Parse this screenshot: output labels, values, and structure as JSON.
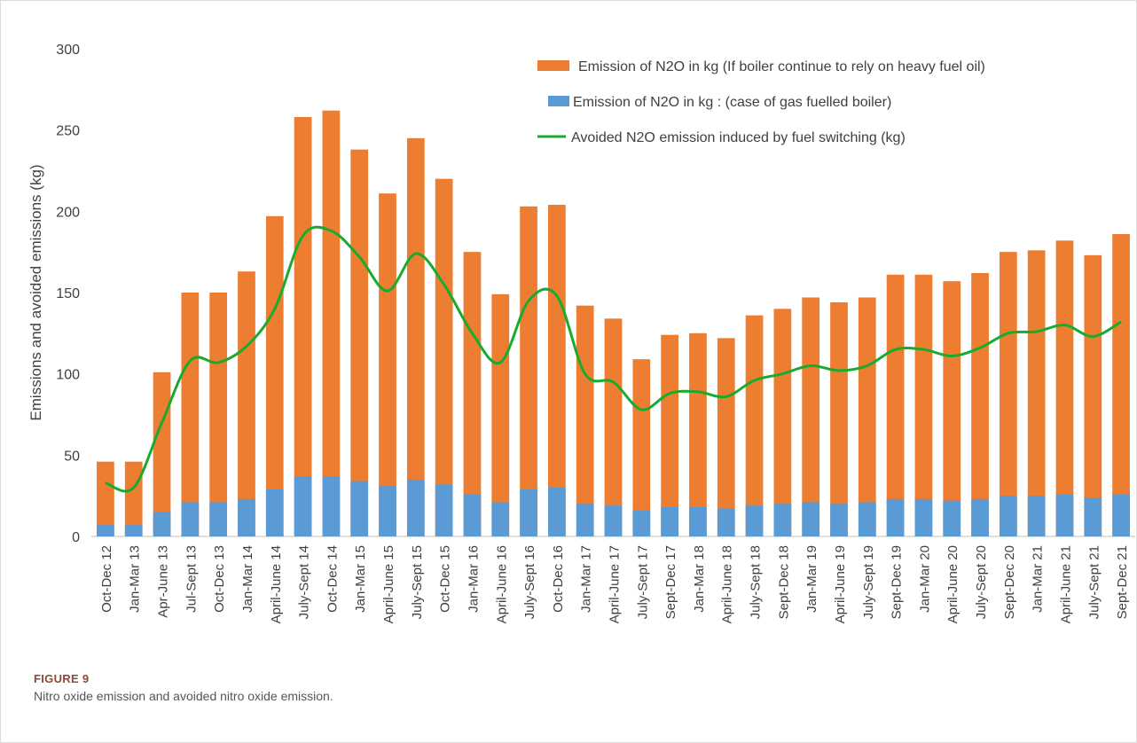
{
  "chart_data": {
    "type": "bar",
    "y_label": "Emissions and avoided emissions (kg)",
    "categories": [
      "Oct-Dec 12",
      "Jan-Mar 13",
      "Apr-June 13",
      "Jul-Sept 13",
      "Oct-Dec 13",
      "Jan-Mar 14",
      "April-June 14",
      "July-Sept 14",
      "Oct-Dec 14",
      "Jan-Mar 15",
      "April-June 15",
      "July-Sept 15",
      "Oct-Dec 15",
      "Jan-Mar 16",
      "April-June 16",
      "July-Sept 16",
      "Oct-Dec 16",
      "Jan-Mar 17",
      "April-June 17",
      "July-Sept 17",
      "Sept-Dec 17",
      "Jan-Mar 18",
      "April-June 18",
      "July-Sept 18",
      "Sept-Dec 18",
      "Jan-Mar 19",
      "April-June 19",
      "July-Sept 19",
      "Sept-Dec 19",
      "Jan-Mar 20",
      "April-June 20",
      "July-Sept 20",
      "Sept-Dec 20",
      "Jan-Mar 21",
      "April-June 21",
      "July-Sept 21",
      "Sept-Dec 21"
    ],
    "series": [
      {
        "name": "Emission of N2O in kg (If boiler continue to rely on heavy fuel oil)",
        "color": "#ed7d31",
        "kind": "bar",
        "values": [
          46,
          46,
          101,
          150,
          150,
          163,
          197,
          258,
          262,
          238,
          211,
          245,
          220,
          175,
          149,
          203,
          204,
          142,
          134,
          109,
          124,
          125,
          122,
          136,
          140,
          147,
          144,
          147,
          161,
          161,
          157,
          162,
          175,
          176,
          182,
          173,
          186
        ]
      },
      {
        "name": "Emission of N2O in kg : (case of gas fuelled boiler)",
        "color": "#5b9bd5",
        "kind": "bar",
        "values": [
          7,
          7,
          15,
          21,
          21,
          23,
          29,
          37,
          37,
          34,
          31,
          35,
          32,
          26,
          21,
          29,
          30,
          20,
          19,
          16,
          18,
          18,
          17,
          19,
          20,
          21,
          20,
          21,
          23,
          23,
          22,
          23,
          25,
          25,
          26,
          24,
          26
        ]
      },
      {
        "name": "Avoided N2O emission induced by fuel switching (kg)",
        "color": "#1aab2d",
        "kind": "line",
        "values": [
          33,
          30,
          70,
          108,
          107,
          117,
          140,
          185,
          188,
          172,
          151,
          174,
          155,
          125,
          107,
          145,
          148,
          100,
          95,
          78,
          88,
          89,
          86,
          96,
          100,
          105,
          102,
          105,
          115,
          115,
          111,
          116,
          125,
          126,
          130,
          123,
          132
        ]
      }
    ],
    "ylim": [
      0,
      300
    ],
    "yticks": [
      0,
      50,
      100,
      150,
      200,
      250,
      300
    ],
    "grid": false
  },
  "figure": {
    "label": "FIGURE 9",
    "caption": "Nitro oxide emission and avoided nitro oxide emission."
  }
}
